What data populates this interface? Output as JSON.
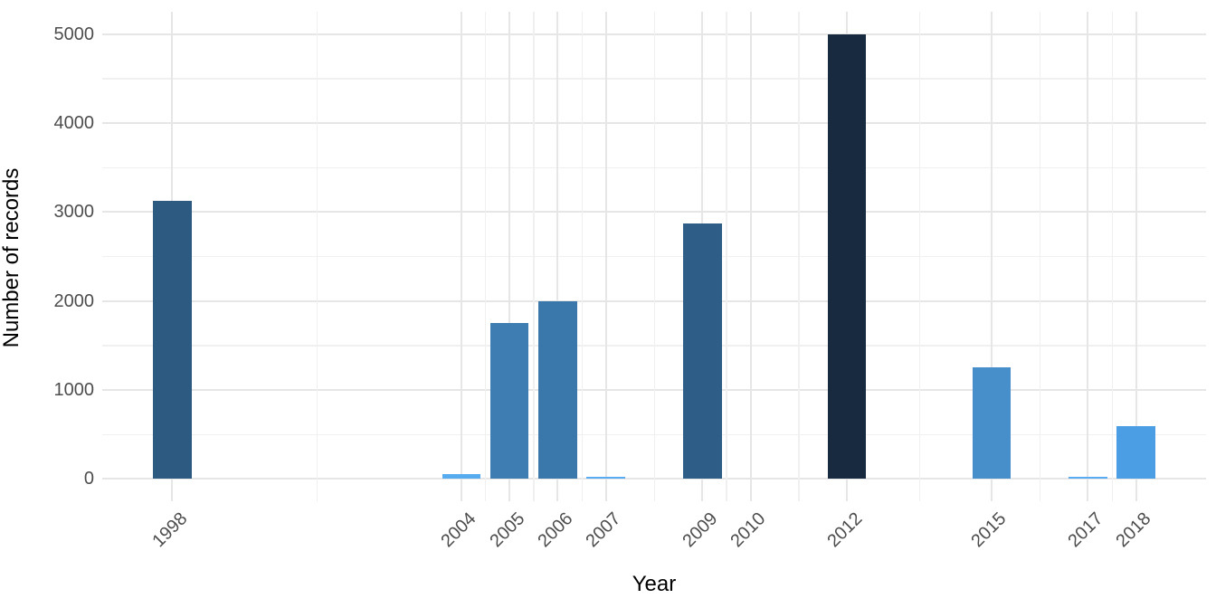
{
  "chart_data": {
    "type": "bar",
    "title": "",
    "xlabel": "Year",
    "ylabel": "Number of records",
    "categories": [
      "1998",
      "2004",
      "2005",
      "2006",
      "2007",
      "2009",
      "2010",
      "2012",
      "2015",
      "2017",
      "2018"
    ],
    "values": [
      3125,
      60,
      1750,
      2000,
      25,
      2875,
      0,
      5000,
      1250,
      20,
      590
    ],
    "bar_colors": [
      "#2c5a80",
      "#57abef",
      "#3d7db2",
      "#3a77ab",
      "#58adf2",
      "#2e5e87",
      "#56aef3",
      "#172a40",
      "#478fca",
      "#58adf2",
      "#4b9de4"
    ],
    "bar_width_years": 0.8,
    "xlim": [
      1996.55,
      2019.45
    ],
    "ylim": [
      -250,
      5250
    ],
    "y_major_ticks": [
      0,
      1000,
      2000,
      3000,
      4000,
      5000
    ],
    "y_minor_ticks": [
      500,
      1500,
      2500,
      3500,
      4500
    ],
    "x_minor_positions": [
      2001,
      2004.5,
      2005.5,
      2006.5,
      2008,
      2009.5,
      2011,
      2013.5,
      2016,
      2017.5
    ],
    "grid": {
      "major_color": "#e6e6e6",
      "minor_color": "#f0f0f0",
      "background": "#ffffff"
    },
    "legend": "none",
    "axis_text_color": "#4d4d4d",
    "axis_title_color": "#000000"
  }
}
